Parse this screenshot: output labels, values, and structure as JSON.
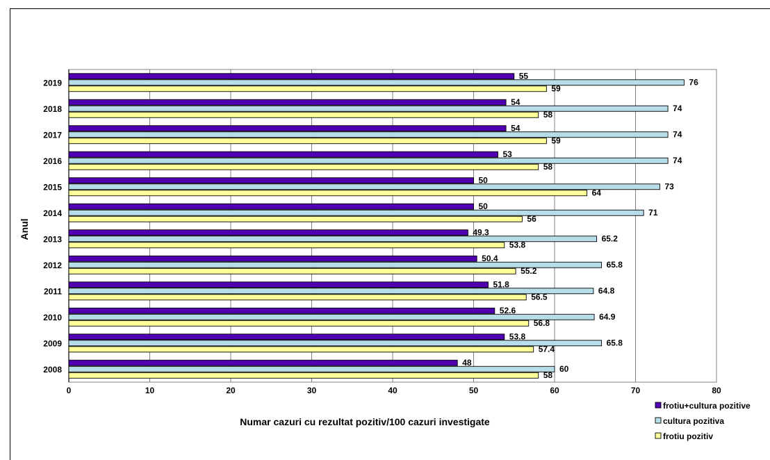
{
  "chart_data": {
    "type": "bar",
    "orientation": "horizontal",
    "categories": [
      "2019",
      "2018",
      "2017",
      "2016",
      "2015",
      "2014",
      "2013",
      "2012",
      "2011",
      "2010",
      "2009",
      "2008"
    ],
    "series": [
      {
        "name": "frotiu+cultura pozitive",
        "color": "#5000b0",
        "values": [
          55,
          54,
          54,
          53,
          50,
          50,
          49.3,
          50.4,
          51.8,
          52.6,
          53.8,
          48
        ],
        "labels": [
          "55",
          "54",
          "54",
          "53",
          "50",
          "50",
          "49.3",
          "50.4",
          "51.8",
          "52.6",
          "53.8",
          "48"
        ]
      },
      {
        "name": "cultura pozitiva",
        "color": "#b7dde8",
        "values": [
          76,
          74,
          74,
          74,
          73,
          71,
          65.2,
          65.8,
          64.8,
          64.9,
          65.8,
          60
        ],
        "labels": [
          "76",
          "74",
          "74",
          "74",
          "73",
          "71",
          "65.2",
          "65.8",
          "64.8",
          "64.9",
          "65.8",
          "60"
        ]
      },
      {
        "name": "frotiu pozitiv",
        "color": "#ffff99",
        "values": [
          59,
          58,
          59,
          58,
          64,
          56,
          53.8,
          55.2,
          56.5,
          56.8,
          57.4,
          58
        ],
        "labels": [
          "59",
          "58",
          "59",
          "58",
          "64",
          "56",
          "53.8",
          "55.2",
          "56.5",
          "56.8",
          "57.4",
          "58"
        ]
      }
    ],
    "xlabel": "Numar cazuri cu rezultat pozitiv/100 cazuri investigate",
    "ylabel": "Anul",
    "xlim": [
      0,
      80
    ],
    "xticks": [
      "0",
      "10",
      "20",
      "30",
      "40",
      "50",
      "60",
      "70",
      "80"
    ],
    "grid": "vertical",
    "legend": "bottom-right"
  }
}
